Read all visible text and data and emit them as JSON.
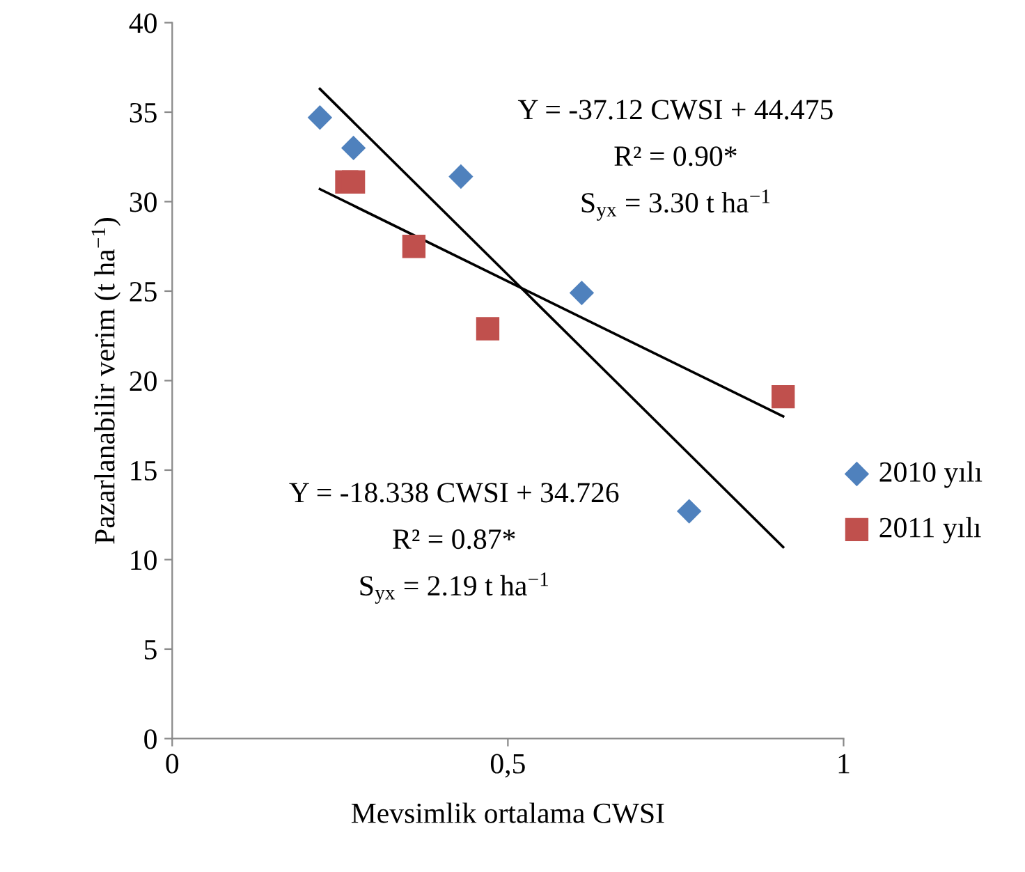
{
  "chart_data": {
    "type": "scatter",
    "xlabel": "Mevsimlik ortalama CWSI",
    "ylabel": "Pazarlanabilir verim (t ha$^{−1}$)",
    "xlim": [
      0,
      1
    ],
    "ylim": [
      0,
      40
    ],
    "xticks": [
      0,
      {
        "value": 0.5,
        "label": "0,5"
      },
      1
    ],
    "yticks": [
      0,
      5,
      10,
      15,
      20,
      25,
      30,
      35,
      40
    ],
    "grid": false,
    "legend": "right",
    "series": [
      {
        "name": "2010 yılı",
        "color": "#4f81bd",
        "marker": "diamond",
        "x": [
          0.22,
          0.27,
          0.43,
          0.61,
          0.77
        ],
        "values": [
          34.7,
          33.0,
          31.4,
          24.9,
          12.7
        ]
      },
      {
        "name": "2011 yılı",
        "color": "#c0504d",
        "marker": "square",
        "x": [
          0.26,
          0.27,
          0.36,
          0.47,
          0.91
        ],
        "values": [
          31.1,
          31.1,
          27.5,
          22.9,
          19.1
        ]
      },
      {
        "type": "line",
        "color": "#000000",
        "marker": "none",
        "x": [
          0.22,
          0.91
        ],
        "values": [
          36.3,
          10.7
        ]
      },
      {
        "type": "line",
        "color": "#000000",
        "marker": "none",
        "x": [
          0.22,
          0.91
        ],
        "values": [
          30.7,
          18.0
        ]
      }
    ],
    "annotations": [
      "Y = -37.12 CWSI + 44.475",
      "R² = 0.90*",
      "S$_{yx}$ = 3.30 t ha$^{−1}$",
      "Y = -18.338 CWSI + 34.726",
      "R² = 0.87*",
      "S$_{yx}$ = 2.19 t ha$^{−1}$"
    ]
  }
}
